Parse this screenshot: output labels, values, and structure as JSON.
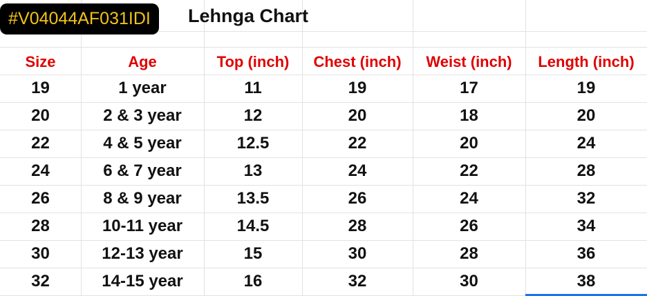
{
  "header": {
    "code": "#V04044AF031IDI",
    "title": "Lehnga Chart"
  },
  "table": {
    "columns": [
      "Size",
      "Age",
      "Top (inch)",
      "Chest (inch)",
      "Weist (inch)",
      "Length (inch)"
    ],
    "rows": [
      [
        19,
        "1 year",
        11,
        19,
        17,
        19
      ],
      [
        20,
        "2 & 3 year",
        12,
        20,
        18,
        20
      ],
      [
        22,
        "4 & 5 year",
        12.5,
        22,
        20,
        24
      ],
      [
        24,
        "6 & 7 year",
        13,
        24,
        22,
        28
      ],
      [
        26,
        "8 & 9 year",
        13.5,
        26,
        24,
        32
      ],
      [
        28,
        "10-11 year",
        14.5,
        28,
        26,
        34
      ],
      [
        30,
        "12-13 year",
        15,
        30,
        28,
        36
      ],
      [
        32,
        "14-15 year",
        16,
        32,
        30,
        38
      ]
    ]
  }
}
